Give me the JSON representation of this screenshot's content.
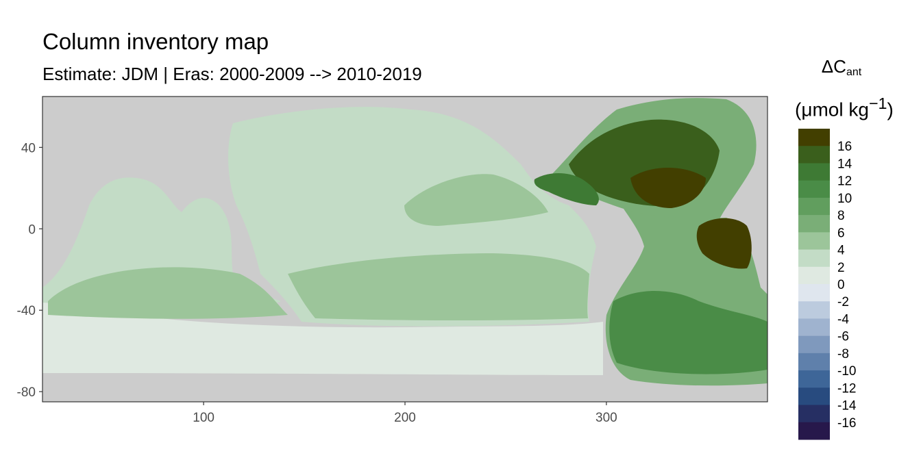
{
  "chart_data": {
    "type": "heatmap",
    "title": "Column inventory map",
    "subtitle": "Estimate: JDM  | Eras: 2000-2009 --> 2010-2019",
    "legend": {
      "title_main": "ΔC",
      "title_sub": "ant",
      "units_open": "(μmol kg",
      "units_sup": "−1",
      "units_close": ")",
      "placement": "right",
      "breaks": [
        "16",
        "14",
        "12",
        "10",
        "8",
        "6",
        "4",
        "2",
        "0",
        "-2",
        "-4",
        "-6",
        "-8",
        "-10",
        "-12",
        "-14",
        "-16"
      ],
      "colors": [
        "#423f00",
        "#3a5f1c",
        "#3e7a34",
        "#4a8c47",
        "#619e5e",
        "#7aae77",
        "#9cc59a",
        "#c3dcc6",
        "#dfe9e1",
        "#dfe6ee",
        "#bccbde",
        "#9fb3cf",
        "#7f99bd",
        "#5f80ab",
        "#3e6698",
        "#284b7f",
        "#262f63",
        "#27184b"
      ]
    },
    "x_ticks": [
      "100",
      "200",
      "300"
    ],
    "y_ticks": [
      "40",
      "0",
      "-40",
      "-80"
    ],
    "xlim": [
      20,
      380
    ],
    "ylim": [
      -85,
      65
    ],
    "land_color": "#cccccc",
    "grid": false
  }
}
